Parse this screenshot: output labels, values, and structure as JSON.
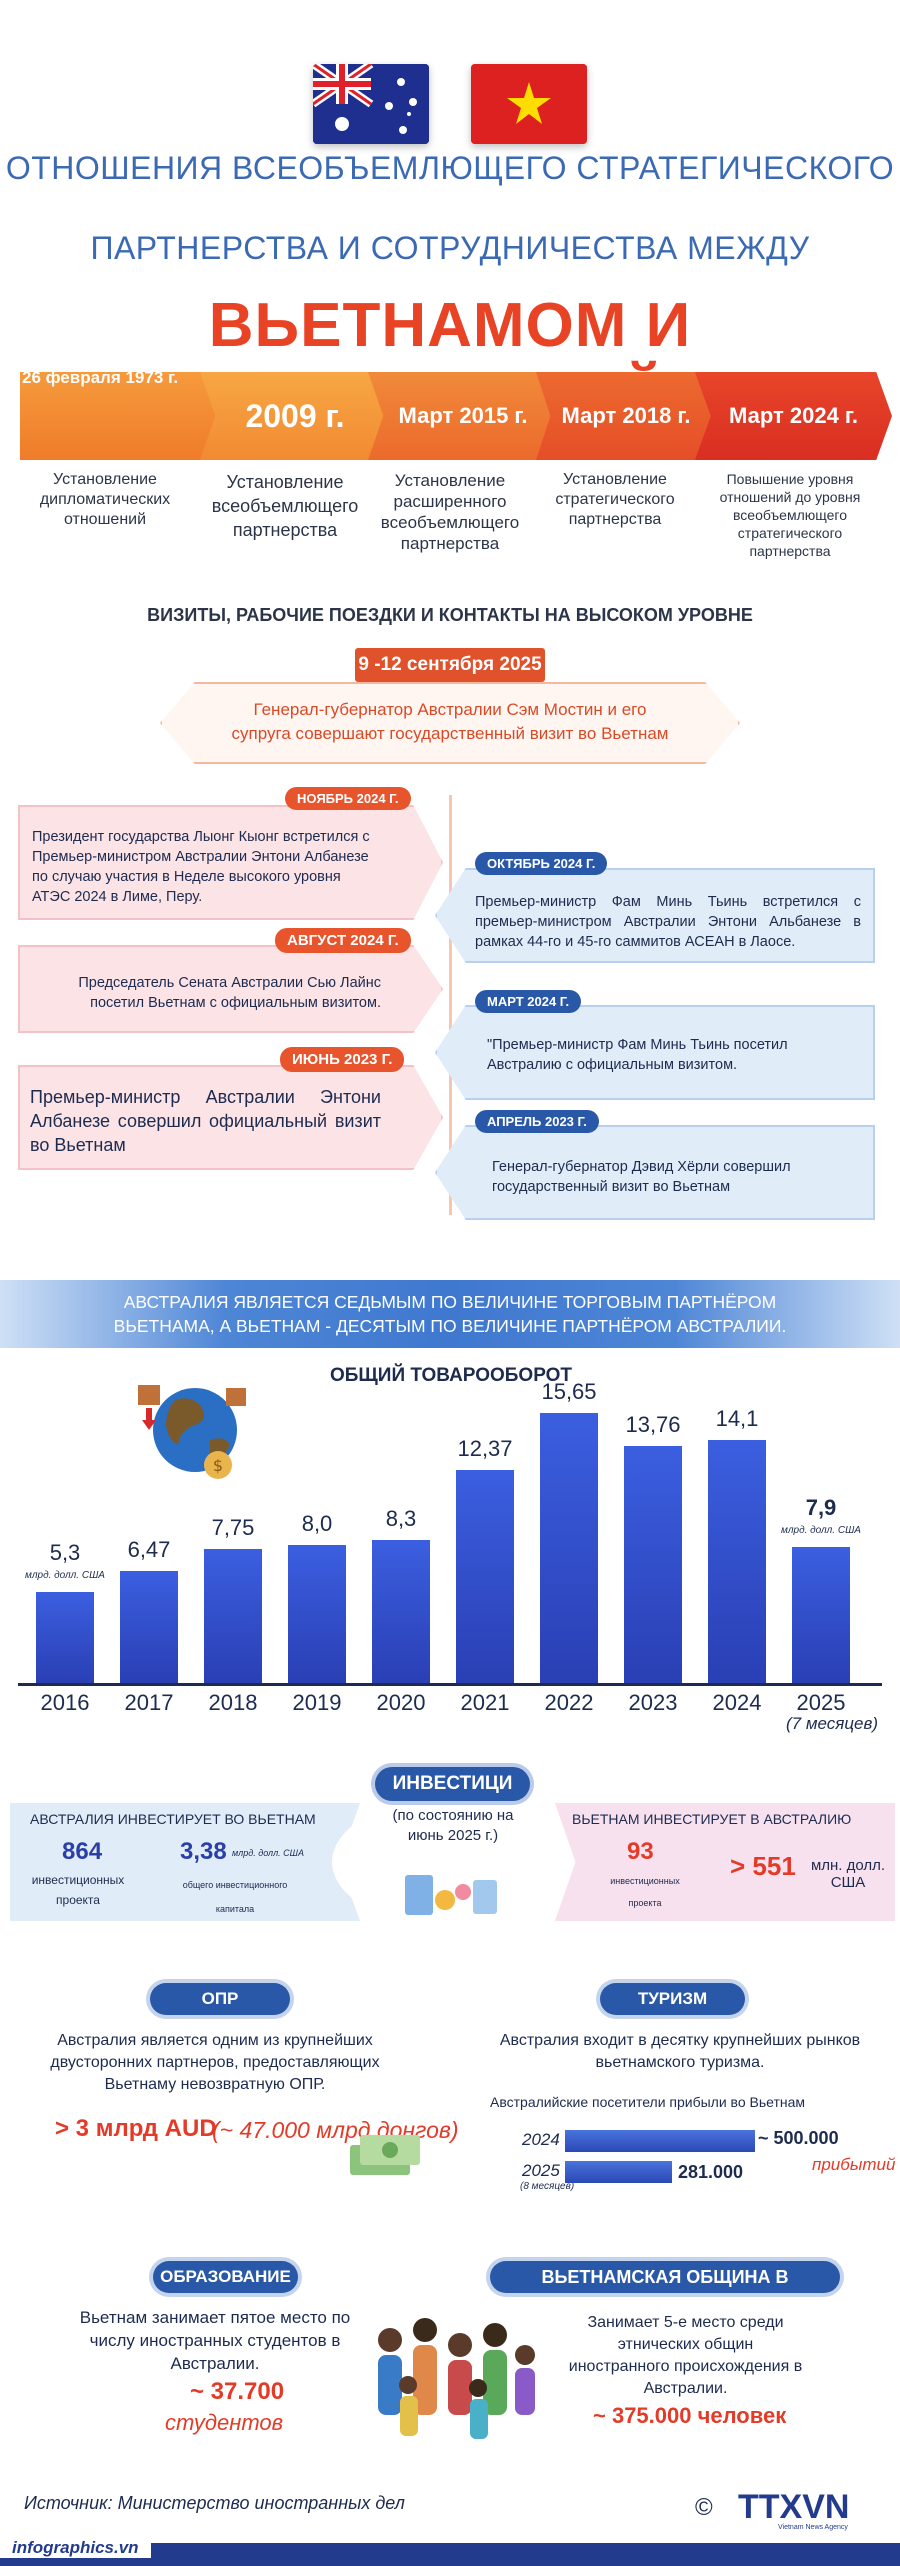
{
  "header": {
    "line1": "ОТНОШЕНИЯ ВСЕОБЪЕМЛЮЩЕГО СТРАТЕГИЧЕСКОГО",
    "line2": "ПАРТНЕРСТВА И СОТРУДНИЧЕСТВА МЕЖДУ",
    "line3": "ВЬЕТНАМОМ И АВСТРАЛИЕЙ"
  },
  "timeline": [
    {
      "date": "26 февраля 1973 г.",
      "desc": "Установление дипломатических отношений"
    },
    {
      "date": "2009 г.",
      "desc": "Установление всеобъемлющего партнерства"
    },
    {
      "date": "Март 2015 г.",
      "desc": "Установление расширенного всеобъемлющего партнерства"
    },
    {
      "date": "Март 2018 г.",
      "desc": "Установление стратегического партнерства"
    },
    {
      "date": "Март 2024 г.",
      "desc": "Повышение уровня отношений до уровня всеобъемлющего стратегического партнерства"
    }
  ],
  "visits": {
    "heading": "ВИЗИТЫ, РАБОЧИЕ ПОЕЗДКИ И КОНТАКТЫ НА ВЫСОКОМ УРОВНЕ",
    "top_date": "9 -12 сентября 2025 г.",
    "top_text": "Генерал-губернатор Австралии Сэм Мостин и его супруга совершают государственный визит во Вьетнам",
    "items": [
      {
        "date": "НОЯБРЬ 2024 Г.",
        "text": "Президент государства Лыонг Кыонг встретился с Премьер-министром Австралии Энтони Албанезе по случаю участия в Неделе высокого уровня АТЭС 2024 в Лиме, Перу."
      },
      {
        "date": "ОКТЯБРЬ 2024 Г.",
        "text": "Премьер-министр Фам Минь Тьинь встретился с премьер-министром Австралии Энтони Альбанезе в рамках 44-го и 45-го саммитов АСЕАН в Лаосе."
      },
      {
        "date": "АВГУСТ 2024 Г.",
        "text": "Председатель Сената Австралии Сью Лайнс посетил Вьетнам с официальным визитом."
      },
      {
        "date": "МАРТ 2024 Г.",
        "text": "\"Премьер-министр Фам Минь Тьинь посетил Австралию с официальным визитом."
      },
      {
        "date": "ИЮНЬ 2023 Г.",
        "text": "Премьер-министр Австралии Энтони Албанезе совершил официальный визит во Вьетнам"
      },
      {
        "date": "АПРЕЛЬ 2023 Г.",
        "text": "Генерал-губернатор Дэвид Хёрли совершил государственный визит во Вьетнам"
      }
    ]
  },
  "trade": {
    "banner_line1": "АВСТРАЛИЯ ЯВЛЯЕТСЯ СЕДЬМЫМ ПО ВЕЛИЧИНЕ ТОРГОВЫМ ПАРТНЁРОМ",
    "banner_line2": "ВЬЕТНАМА, А ВЬЕТНАМ - ДЕСЯТЫМ ПО ВЕЛИЧИНЕ ПАРТНЁРОМ АВСТРАЛИИ."
  },
  "chart_data": {
    "type": "bar",
    "title": "ОБЩИЙ ТОВАРООБОРОТ",
    "categories": [
      "2016",
      "2017",
      "2018",
      "2019",
      "2020",
      "2021",
      "2022",
      "2023",
      "2024",
      "2025"
    ],
    "values": [
      5.3,
      6.47,
      7.75,
      8.0,
      8.3,
      12.37,
      15.65,
      13.76,
      14.1,
      7.9
    ],
    "value_labels": [
      "5,3",
      "6,47",
      "7,75",
      "8,0",
      "8,3",
      "12,37",
      "15,65",
      "13,76",
      "14,1",
      "7,9"
    ],
    "unit_first": "млрд. долл. США",
    "unit_last": "млрд. долл. США",
    "note_last": "(7 месяцев)",
    "color": "#2f4fc8"
  },
  "invest": {
    "title": "ИНВЕСТИЦИ",
    "center": "(по состоянию на июнь 2025 г.)",
    "au_title": "АВСТРАЛИЯ ИНВЕСТИРУЕТ ВО ВЬЕТНАМ",
    "au_projects": "864",
    "au_projects_label": "инвестиционных проекта",
    "au_capital": "3,38",
    "au_capital_unit": "млрд. долл. США",
    "au_capital_label": "общего инвестиционного капитала",
    "vn_title": "ВЬЕТНАМ ИНВЕСТИРУЕТ В АВСТРАЛИЮ",
    "vn_projects": "93",
    "vn_projects_label": "инвестиционных проекта",
    "vn_capital": "> 551",
    "vn_capital_unit": "млн. долл. США"
  },
  "oda": {
    "title": "ОПР",
    "text": "Австралия является одним из крупнейших двусторонних партнеров, предоставляющих Вьетнаму невозвратную ОПР.",
    "value": "> 3 млрд AUD",
    "value2": "(~ 47.000 млрд донгов)"
  },
  "tourism": {
    "title": "ТУРИЗМ",
    "text": "Австралия входит в десятку крупнейших рынков вьетнамского туризма.",
    "subtitle": "Австралийские посетители прибыли во Вьетнам",
    "rows": [
      {
        "year": "2024",
        "note": "",
        "value": "~ 500.000",
        "unit": "прибытий",
        "count": 500000
      },
      {
        "year": "2025",
        "note": "(8 месяцев)",
        "value": "281.000",
        "unit": "",
        "count": 281000
      }
    ]
  },
  "education": {
    "title": "ОБРАЗОВАНИЕ",
    "text": "Вьетнам занимает пятое место по числу иностранных студентов в Австралии.",
    "value": "~ 37.700",
    "unit": "студентов"
  },
  "community": {
    "title": "ВЬЕТНАМСКАЯ ОБЩИНА В АВСТРАЛИИ",
    "text": "Занимает 5-е место среди этнических общин иностранного происхождения в Австралии.",
    "value": "~ 375.000 человек"
  },
  "footer": {
    "source": "Источник: Министерство иностранных дел",
    "copyright": "©",
    "logo": "TTXVN",
    "logo_sub": "Vietnam News Agency",
    "site": "infographics.vn"
  }
}
